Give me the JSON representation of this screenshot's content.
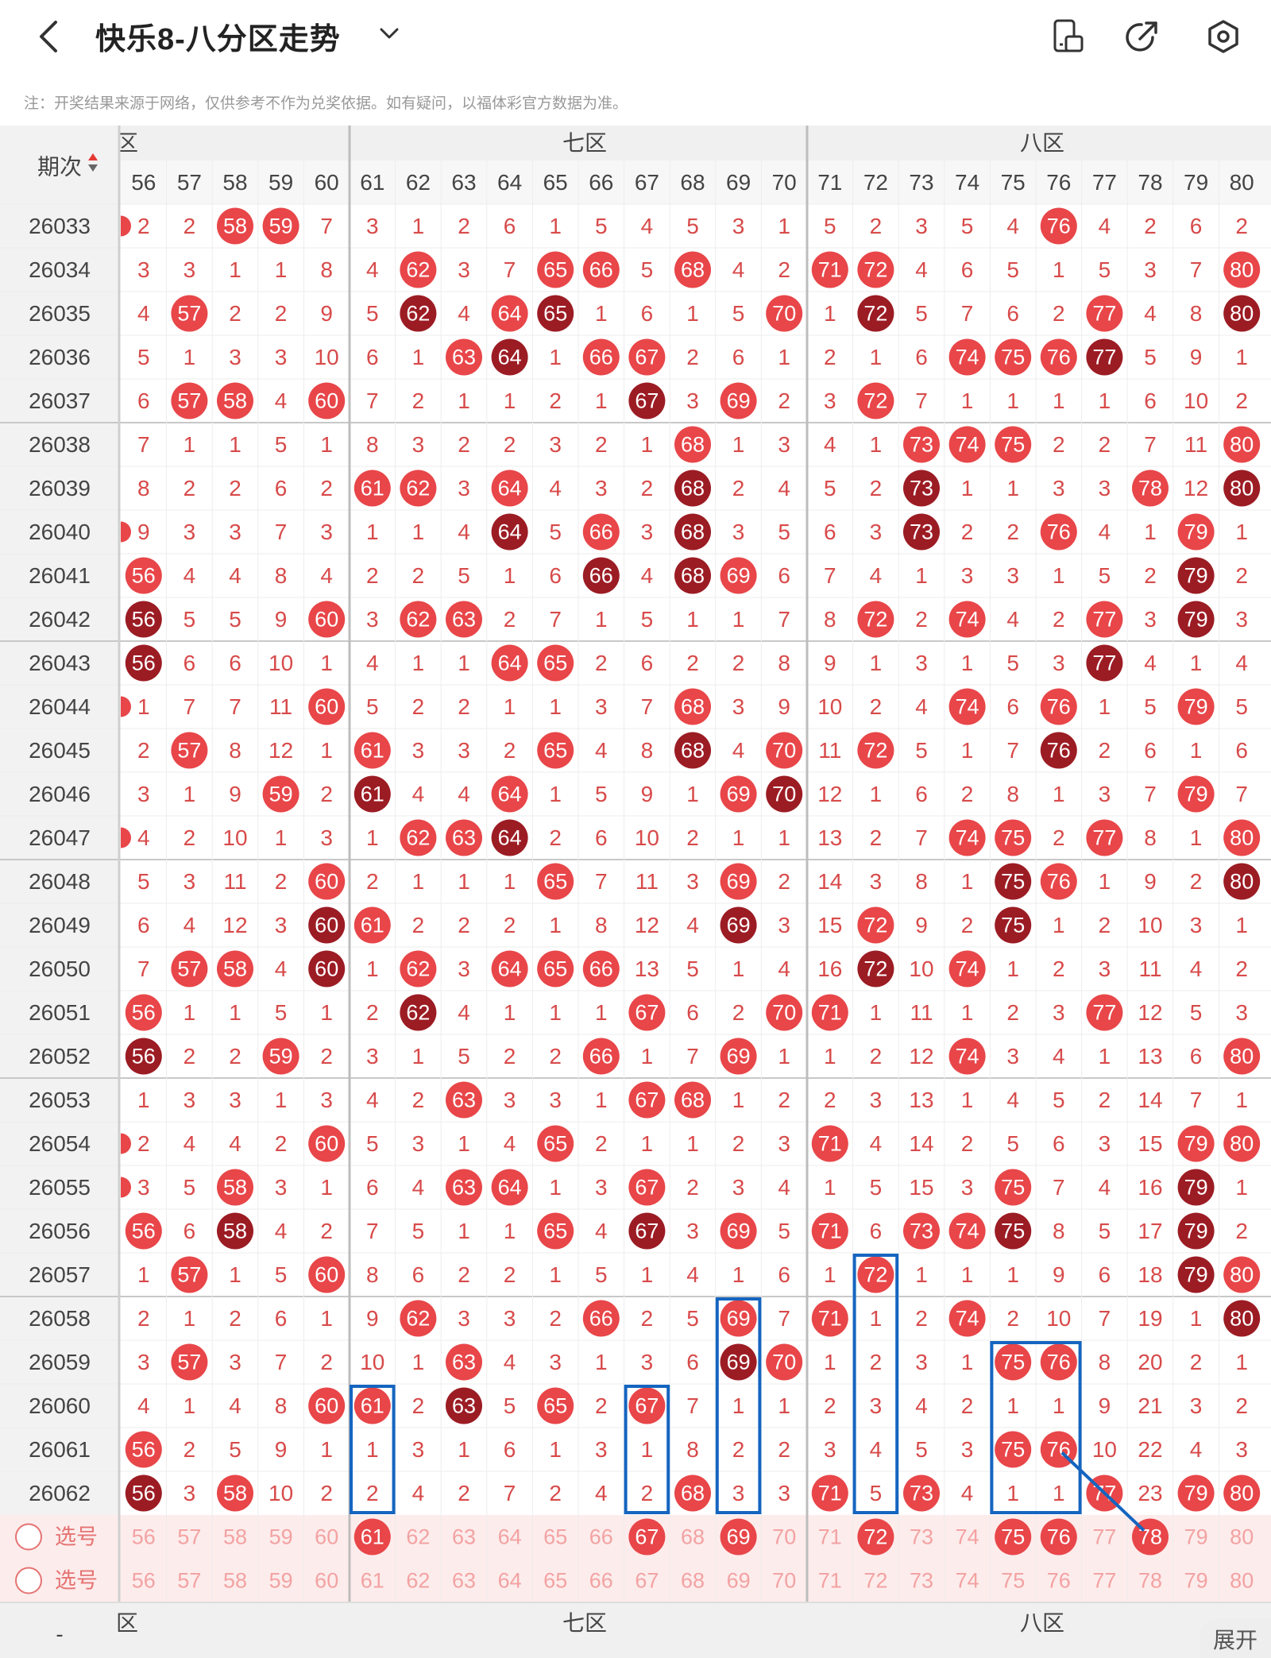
{
  "header": {
    "title": "快乐8-八分区走势",
    "back_icon": "chevron-left-icon",
    "dropdown_icon": "chevron-down-icon"
  },
  "toolbar": {
    "icons": [
      "phone-rotate-icon",
      "share-icon",
      "settings-icon"
    ]
  },
  "note": "注：开奖结果来源于网络，仅供参考不作为兑奖依据。如有疑问，以福体彩官方数据为准。",
  "table": {
    "period_header": "期次",
    "zones": [
      {
        "label": "六区",
        "shown": "区"
      },
      {
        "label": "七区"
      },
      {
        "label": "八区"
      }
    ],
    "columns": [
      "56",
      "57",
      "58",
      "59",
      "60",
      "61",
      "62",
      "63",
      "64",
      "65",
      "66",
      "67",
      "68",
      "69",
      "70",
      "71",
      "72",
      "73",
      "74",
      "75",
      "76",
      "77",
      "78",
      "79",
      "80"
    ],
    "select_label": "选号",
    "rows": [
      {
        "period": "26033",
        "edge": true,
        "cells": [
          "2",
          "2",
          "58",
          "59",
          "7",
          "3",
          "1",
          "2",
          "6",
          "1",
          "5",
          "4",
          "5",
          "3",
          "1",
          "5",
          "2",
          "3",
          "5",
          "4",
          "76",
          "4",
          "2",
          "6",
          "2"
        ]
      },
      {
        "period": "26034",
        "edge": false,
        "cells": [
          "3",
          "3",
          "1",
          "1",
          "8",
          "4",
          "62",
          "3",
          "7",
          "65",
          "66",
          "5",
          "68",
          "4",
          "2",
          "71",
          "72",
          "4",
          "6",
          "5",
          "1",
          "5",
          "3",
          "7",
          "80"
        ]
      },
      {
        "period": "26035",
        "edge": false,
        "cells": [
          "4",
          "57",
          "2",
          "2",
          "9",
          "5",
          "62",
          "4",
          "64",
          "65",
          "1",
          "6",
          "1",
          "5",
          "70",
          "1",
          "72",
          "5",
          "7",
          "6",
          "2",
          "77",
          "4",
          "8",
          "80"
        ]
      },
      {
        "period": "26036",
        "edge": false,
        "cells": [
          "5",
          "1",
          "3",
          "3",
          "10",
          "6",
          "1",
          "63",
          "64",
          "1",
          "66",
          "67",
          "2",
          "6",
          "1",
          "2",
          "1",
          "6",
          "74",
          "75",
          "76",
          "77",
          "5",
          "9",
          "1"
        ]
      },
      {
        "period": "26037",
        "edge": false,
        "cells": [
          "6",
          "57",
          "58",
          "4",
          "60",
          "7",
          "2",
          "1",
          "1",
          "2",
          "1",
          "67",
          "3",
          "69",
          "2",
          "3",
          "72",
          "7",
          "1",
          "1",
          "1",
          "1",
          "6",
          "10",
          "2"
        ]
      },
      {
        "period": "26038",
        "edge": false,
        "cells": [
          "7",
          "1",
          "1",
          "5",
          "1",
          "8",
          "3",
          "2",
          "2",
          "3",
          "2",
          "1",
          "68",
          "1",
          "3",
          "4",
          "1",
          "73",
          "74",
          "75",
          "2",
          "2",
          "7",
          "11",
          "80"
        ]
      },
      {
        "period": "26039",
        "edge": false,
        "cells": [
          "8",
          "2",
          "2",
          "6",
          "2",
          "61",
          "62",
          "3",
          "64",
          "4",
          "3",
          "2",
          "68",
          "2",
          "4",
          "5",
          "2",
          "73",
          "1",
          "1",
          "3",
          "3",
          "78",
          "12",
          "80"
        ]
      },
      {
        "period": "26040",
        "edge": true,
        "cells": [
          "9",
          "3",
          "3",
          "7",
          "3",
          "1",
          "1",
          "4",
          "64",
          "5",
          "66",
          "3",
          "68",
          "3",
          "5",
          "6",
          "3",
          "73",
          "2",
          "2",
          "76",
          "4",
          "1",
          "79",
          "1"
        ]
      },
      {
        "period": "26041",
        "edge": false,
        "cells": [
          "56",
          "4",
          "4",
          "8",
          "4",
          "2",
          "2",
          "5",
          "1",
          "6",
          "66",
          "4",
          "68",
          "69",
          "6",
          "7",
          "4",
          "1",
          "3",
          "3",
          "1",
          "5",
          "2",
          "79",
          "2"
        ]
      },
      {
        "period": "26042",
        "edge": false,
        "cells": [
          "56",
          "5",
          "5",
          "9",
          "60",
          "3",
          "62",
          "63",
          "2",
          "7",
          "1",
          "5",
          "1",
          "1",
          "7",
          "8",
          "72",
          "2",
          "74",
          "4",
          "2",
          "77",
          "3",
          "79",
          "3"
        ]
      },
      {
        "period": "26043",
        "edge": false,
        "cells": [
          "56",
          "6",
          "6",
          "10",
          "1",
          "4",
          "1",
          "1",
          "64",
          "65",
          "2",
          "6",
          "2",
          "2",
          "8",
          "9",
          "1",
          "3",
          "1",
          "5",
          "3",
          "77",
          "4",
          "1",
          "4"
        ]
      },
      {
        "period": "26044",
        "edge": true,
        "cells": [
          "1",
          "7",
          "7",
          "11",
          "60",
          "5",
          "2",
          "2",
          "1",
          "1",
          "3",
          "7",
          "68",
          "3",
          "9",
          "10",
          "2",
          "4",
          "74",
          "6",
          "76",
          "1",
          "5",
          "79",
          "5"
        ]
      },
      {
        "period": "26045",
        "edge": false,
        "cells": [
          "2",
          "57",
          "8",
          "12",
          "1",
          "61",
          "3",
          "3",
          "2",
          "65",
          "4",
          "8",
          "68",
          "4",
          "70",
          "11",
          "72",
          "5",
          "1",
          "7",
          "76",
          "2",
          "6",
          "1",
          "6"
        ]
      },
      {
        "period": "26046",
        "edge": false,
        "cells": [
          "3",
          "1",
          "9",
          "59",
          "2",
          "61",
          "4",
          "4",
          "64",
          "1",
          "5",
          "9",
          "1",
          "69",
          "70",
          "12",
          "1",
          "6",
          "2",
          "8",
          "1",
          "3",
          "7",
          "79",
          "7"
        ]
      },
      {
        "period": "26047",
        "edge": true,
        "cells": [
          "4",
          "2",
          "10",
          "1",
          "3",
          "1",
          "62",
          "63",
          "64",
          "2",
          "6",
          "10",
          "2",
          "1",
          "1",
          "13",
          "2",
          "7",
          "74",
          "75",
          "2",
          "77",
          "8",
          "1",
          "80"
        ]
      },
      {
        "period": "26048",
        "edge": false,
        "cells": [
          "5",
          "3",
          "11",
          "2",
          "60",
          "2",
          "1",
          "1",
          "1",
          "65",
          "7",
          "11",
          "3",
          "69",
          "2",
          "14",
          "3",
          "8",
          "1",
          "75",
          "76",
          "1",
          "9",
          "2",
          "80"
        ]
      },
      {
        "period": "26049",
        "edge": false,
        "cells": [
          "6",
          "4",
          "12",
          "3",
          "60",
          "61",
          "2",
          "2",
          "2",
          "1",
          "8",
          "12",
          "4",
          "69",
          "3",
          "15",
          "72",
          "9",
          "2",
          "75",
          "1",
          "2",
          "10",
          "3",
          "1"
        ]
      },
      {
        "period": "26050",
        "edge": false,
        "cells": [
          "7",
          "57",
          "58",
          "4",
          "60",
          "1",
          "62",
          "3",
          "64",
          "65",
          "66",
          "13",
          "5",
          "1",
          "4",
          "16",
          "72",
          "10",
          "74",
          "1",
          "2",
          "3",
          "11",
          "4",
          "2"
        ]
      },
      {
        "period": "26051",
        "edge": false,
        "cells": [
          "56",
          "1",
          "1",
          "5",
          "1",
          "2",
          "62",
          "4",
          "1",
          "1",
          "1",
          "67",
          "6",
          "2",
          "70",
          "71",
          "1",
          "11",
          "1",
          "2",
          "3",
          "77",
          "12",
          "5",
          "3"
        ]
      },
      {
        "period": "26052",
        "edge": false,
        "cells": [
          "56",
          "2",
          "2",
          "59",
          "2",
          "3",
          "1",
          "5",
          "2",
          "2",
          "66",
          "1",
          "7",
          "69",
          "1",
          "1",
          "2",
          "12",
          "74",
          "3",
          "4",
          "1",
          "13",
          "6",
          "80"
        ]
      },
      {
        "period": "26053",
        "edge": false,
        "cells": [
          "1",
          "3",
          "3",
          "1",
          "3",
          "4",
          "2",
          "63",
          "3",
          "3",
          "1",
          "67",
          "68",
          "1",
          "2",
          "2",
          "3",
          "13",
          "1",
          "4",
          "5",
          "2",
          "14",
          "7",
          "1"
        ]
      },
      {
        "period": "26054",
        "edge": true,
        "cells": [
          "2",
          "4",
          "4",
          "2",
          "60",
          "5",
          "3",
          "1",
          "4",
          "65",
          "2",
          "1",
          "1",
          "2",
          "3",
          "71",
          "4",
          "14",
          "2",
          "5",
          "6",
          "3",
          "15",
          "79",
          "80"
        ]
      },
      {
        "period": "26055",
        "edge": true,
        "cells": [
          "3",
          "5",
          "58",
          "3",
          "1",
          "6",
          "4",
          "63",
          "64",
          "1",
          "3",
          "67",
          "2",
          "3",
          "4",
          "1",
          "5",
          "15",
          "3",
          "75",
          "7",
          "4",
          "16",
          "79",
          "1"
        ]
      },
      {
        "period": "26056",
        "edge": false,
        "cells": [
          "56",
          "6",
          "58",
          "4",
          "2",
          "7",
          "5",
          "1",
          "1",
          "65",
          "4",
          "67",
          "3",
          "69",
          "5",
          "71",
          "6",
          "73",
          "74",
          "75",
          "8",
          "5",
          "17",
          "79",
          "2"
        ]
      },
      {
        "period": "26057",
        "edge": false,
        "cells": [
          "1",
          "57",
          "1",
          "5",
          "60",
          "8",
          "6",
          "2",
          "2",
          "1",
          "5",
          "1",
          "4",
          "1",
          "6",
          "1",
          "72",
          "1",
          "1",
          "1",
          "9",
          "6",
          "18",
          "79",
          "80"
        ]
      },
      {
        "period": "26058",
        "edge": false,
        "cells": [
          "2",
          "1",
          "2",
          "6",
          "1",
          "9",
          "62",
          "3",
          "3",
          "2",
          "66",
          "2",
          "5",
          "69",
          "7",
          "71",
          "1",
          "2",
          "74",
          "2",
          "10",
          "7",
          "19",
          "1",
          "80"
        ]
      },
      {
        "period": "26059",
        "edge": false,
        "cells": [
          "3",
          "57",
          "3",
          "7",
          "2",
          "10",
          "1",
          "63",
          "4",
          "3",
          "1",
          "3",
          "6",
          "69",
          "70",
          "1",
          "2",
          "3",
          "1",
          "75",
          "76",
          "8",
          "20",
          "2",
          "1"
        ]
      },
      {
        "period": "26060",
        "edge": false,
        "cells": [
          "4",
          "1",
          "4",
          "8",
          "60",
          "61",
          "2",
          "63",
          "5",
          "65",
          "2",
          "67",
          "7",
          "1",
          "1",
          "2",
          "3",
          "4",
          "2",
          "1",
          "1",
          "9",
          "21",
          "3",
          "2"
        ]
      },
      {
        "period": "26061",
        "edge": false,
        "cells": [
          "56",
          "2",
          "5",
          "9",
          "1",
          "1",
          "3",
          "1",
          "6",
          "1",
          "3",
          "1",
          "8",
          "2",
          "2",
          "3",
          "4",
          "5",
          "3",
          "75",
          "76",
          "10",
          "22",
          "4",
          "3"
        ]
      },
      {
        "period": "26062",
        "edge": false,
        "cells": [
          "56",
          "3",
          "58",
          "10",
          "2",
          "2",
          "4",
          "2",
          "7",
          "2",
          "4",
          "2",
          "68",
          "3",
          "3",
          "71",
          "5",
          "73",
          "4",
          "1",
          "1",
          "77",
          "23",
          "79",
          "80"
        ]
      }
    ],
    "select_rows": [
      {
        "label": "选号",
        "selected": [
          "61",
          "67",
          "69",
          "72",
          "75",
          "76",
          "78"
        ]
      },
      {
        "label": "选号",
        "selected": []
      }
    ],
    "bottom_repeat_zones": [
      "区",
      "七区",
      "八区"
    ],
    "bottom_left": "-"
  },
  "expand_label": "展开",
  "colors": {
    "red": "#e84649",
    "dark_red": "#9c1c24",
    "blue": "#1565c0",
    "text_red": "#d84a4a",
    "zone_header_bg": "#f0f0f0"
  }
}
